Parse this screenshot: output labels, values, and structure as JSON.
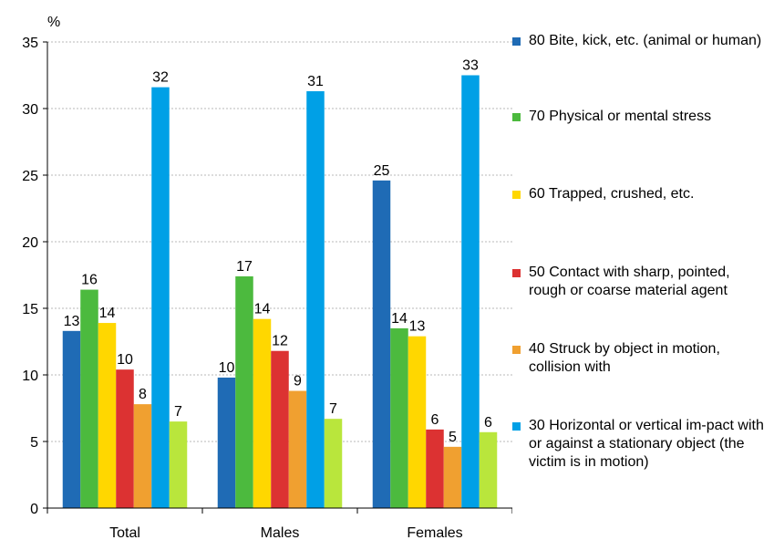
{
  "chart_data": {
    "type": "bar",
    "ylabel": "%",
    "ylim": [
      0,
      35
    ],
    "yticks": [
      0,
      5,
      10,
      15,
      20,
      25,
      30,
      35
    ],
    "grid": true,
    "legend_position": "right",
    "categories": [
      "Total",
      "Males",
      "Females"
    ],
    "series": [
      {
        "name": "80  Bite, kick, etc. (animal or human)",
        "color": "#1f6bb5",
        "values": [
          13.3,
          9.8,
          24.6
        ],
        "labels": [
          "13",
          "10",
          "25"
        ]
      },
      {
        "name": "70  Physical or mental stress",
        "color": "#4cba3e",
        "values": [
          16.4,
          17.4,
          13.5
        ],
        "labels": [
          "16",
          "17",
          "14"
        ]
      },
      {
        "name": "60  Trapped, crushed, etc.",
        "color": "#ffd700",
        "values": [
          13.9,
          14.2,
          12.9
        ],
        "labels": [
          "14",
          "14",
          "13"
        ]
      },
      {
        "name": "50  Contact with sharp, pointed, rough or coarse material agent",
        "color": "#dc3232",
        "values": [
          10.4,
          11.8,
          5.9
        ],
        "labels": [
          "10",
          "12",
          "6"
        ]
      },
      {
        "name": "40  Struck by object in motion, collision with",
        "color": "#f0a030",
        "values": [
          7.8,
          8.8,
          4.6
        ],
        "labels": [
          "8",
          "9",
          "5"
        ]
      },
      {
        "name": "30  Horizontal or vertical im-pact with or against a stationary object (the victim is in motion)",
        "color": "#00a0e6",
        "values": [
          31.6,
          31.3,
          32.5
        ],
        "labels": [
          "32",
          "31",
          "33"
        ]
      },
      {
        "name": "",
        "color": "#b9e63c",
        "values": [
          6.5,
          6.7,
          5.7
        ],
        "labels": [
          "7",
          "7",
          "6"
        ]
      }
    ]
  },
  "legend": {
    "items": [
      {
        "text": "80  Bite, kick, etc. (animal or human)",
        "color": "#1f6bb5"
      },
      {
        "text": "70  Physical or mental stress",
        "color": "#4cba3e"
      },
      {
        "text": "60  Trapped, crushed, etc.",
        "color": "#ffd700"
      },
      {
        "text": "50  Contact with sharp, pointed, rough or coarse material agent",
        "color": "#dc3232"
      },
      {
        "text": "40  Struck by object in motion, collision with",
        "color": "#f0a030"
      },
      {
        "text": "30  Horizontal or vertical im-pact with or against a stationary object (the victim is in motion)",
        "color": "#00a0e6"
      }
    ]
  }
}
